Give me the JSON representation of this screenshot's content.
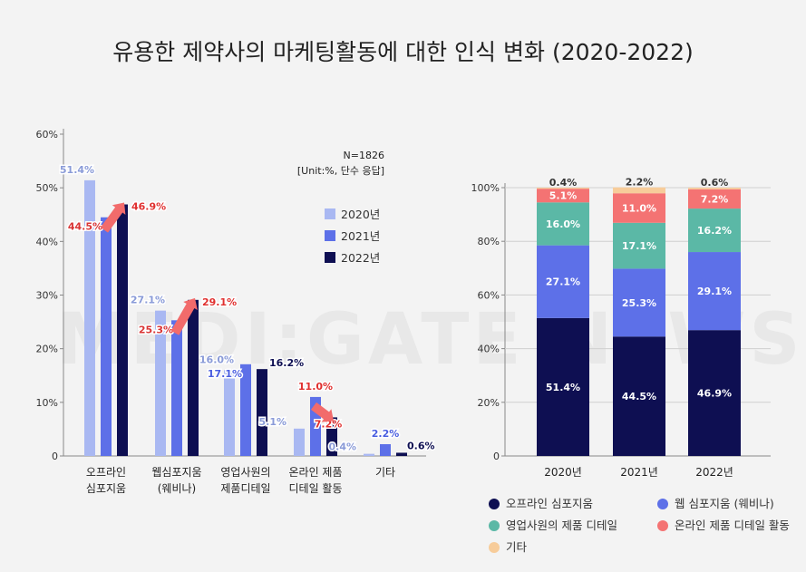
{
  "title": "유용한 제약사의 마케팅활동에 대한 인식 변화 (2020-2022)",
  "watermark": "MEDI:GATE NEWS",
  "colors": {
    "y2020": "#a9b8f2",
    "y2021": "#5d70e8",
    "y2022": "#0e0f52",
    "offline": "#0e0f52",
    "web": "#5d70e8",
    "rep": "#5bb8a6",
    "online": "#f47373",
    "other": "#f7cc9a",
    "up_arrow": "#f26b6b",
    "label_2020": "#8a9bd8",
    "label_2021": "#4a5ee0",
    "label_2022": "#0e0f52",
    "label_up": "#e0302f"
  },
  "chart_data": [
    {
      "type": "bar",
      "note_line1": "N=1826",
      "note_line2": "[Unit:%, 단수 응답]",
      "categories": [
        [
          "오프라인",
          "심포지움"
        ],
        [
          "웹심포지움",
          "(웨비나)"
        ],
        [
          "영업사원의",
          "제품디테일"
        ],
        [
          "온라인 제품",
          "디테일 활동"
        ],
        [
          "기타",
          ""
        ]
      ],
      "series": [
        {
          "name": "2020년",
          "values": [
            51.4,
            27.1,
            16.0,
            5.1,
            0.4
          ],
          "labels": [
            "51.4%",
            "27.1%",
            "16.0%",
            "5.1%",
            "0.4%"
          ]
        },
        {
          "name": "2021년",
          "values": [
            44.5,
            25.3,
            17.1,
            11.0,
            2.2
          ],
          "labels": [
            "44.5%",
            "25.3%",
            "17.1%",
            "11.0%",
            "2.2%"
          ]
        },
        {
          "name": "2022년",
          "values": [
            46.9,
            29.1,
            16.2,
            7.2,
            0.6
          ],
          "labels": [
            "46.9%",
            "29.1%",
            "16.2%",
            "7.2%",
            "0.6%"
          ]
        }
      ],
      "ylim": [
        0,
        60
      ],
      "yticks": [
        "0",
        "10%",
        "20%",
        "30%",
        "40%",
        "50%",
        "60%"
      ],
      "trend_arrows": [
        "up",
        "up",
        "none",
        "down",
        "none"
      ],
      "grid": false,
      "legend_position": "top-right"
    },
    {
      "type": "bar",
      "stacked": true,
      "categories": [
        "2020년",
        "2021년",
        "2022년"
      ],
      "series": [
        {
          "name": "오프라인 심포지움",
          "values": [
            51.4,
            44.5,
            46.9
          ],
          "labels": [
            "51.4%",
            "44.5%",
            "46.9%"
          ]
        },
        {
          "name": "웹 심포지움 (웨비나)",
          "values": [
            27.1,
            25.3,
            29.1
          ],
          "labels": [
            "27.1%",
            "25.3%",
            "29.1%"
          ]
        },
        {
          "name": "영업사원의 제품 디테일",
          "values": [
            16.0,
            17.1,
            16.2
          ],
          "labels": [
            "16.0%",
            "17.1%",
            "16.2%"
          ]
        },
        {
          "name": "온라인 제품 디테일 활동",
          "values": [
            5.1,
            11.0,
            7.2
          ],
          "labels": [
            "5.1%",
            "11.0%",
            "7.2%"
          ]
        },
        {
          "name": "기타",
          "values": [
            0.4,
            2.2,
            0.6
          ],
          "labels": [
            "0.4%",
            "2.2%",
            "0.6%"
          ]
        }
      ],
      "ylim": [
        0,
        100
      ],
      "yticks": [
        "0",
        "20%",
        "40%",
        "60%",
        "80%",
        "100%"
      ],
      "grid": true,
      "legend_position": "bottom"
    }
  ]
}
